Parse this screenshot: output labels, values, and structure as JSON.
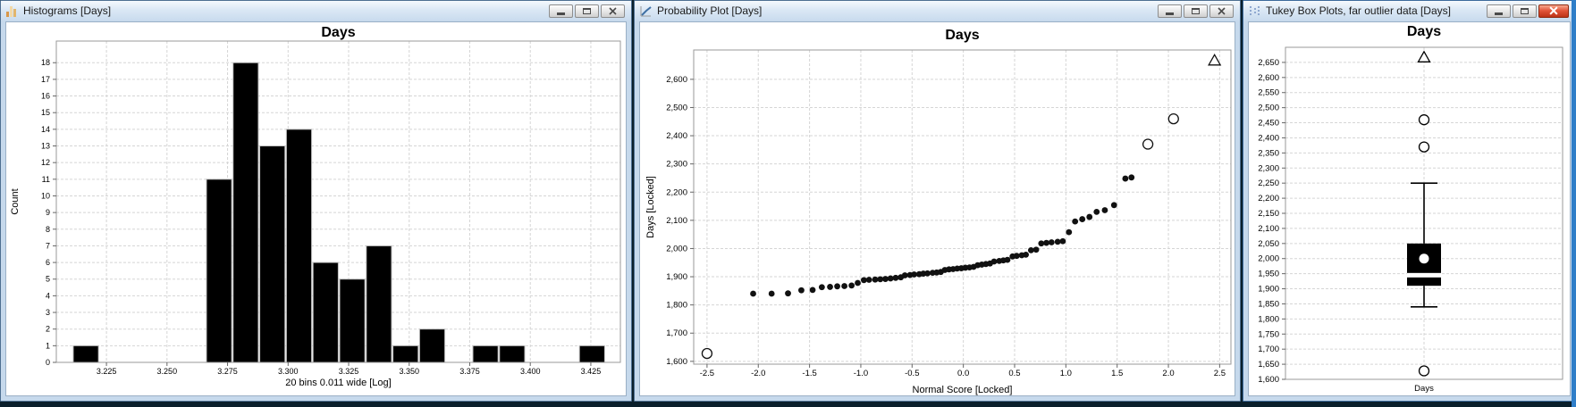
{
  "desktop": {
    "bg_color": "#0a1f2b",
    "right_edge_color": "#2f7ec8"
  },
  "windows": [
    {
      "title": "Histograms [Days]",
      "icon": "histogram-icon",
      "active": false
    },
    {
      "title": "Probability Plot [Days]",
      "icon": "line-plot-icon",
      "active": false
    },
    {
      "title": "Tukey Box Plots, far outlier data [Days]",
      "icon": "scatter-plot-icon",
      "active": true
    }
  ],
  "chart_data": [
    {
      "type": "bar",
      "title": "Days",
      "xlabel": "20 bins 0.011 wide [Log]",
      "ylabel": "Count",
      "bin_start": 3.211,
      "bin_width": 0.011,
      "counts": [
        1,
        0,
        0,
        0,
        0,
        11,
        18,
        13,
        14,
        6,
        5,
        7,
        1,
        2,
        0,
        1,
        1,
        0,
        0,
        1
      ],
      "x_ticks": [
        3.225,
        3.25,
        3.275,
        3.3,
        3.325,
        3.35,
        3.375,
        3.4,
        3.425
      ],
      "x_tick_decimals": 3,
      "y_ticks": [
        0,
        1,
        2,
        3,
        4,
        5,
        6,
        7,
        8,
        9,
        10,
        11,
        12,
        13,
        14,
        15,
        16,
        17,
        18
      ],
      "y_tick_comma": false,
      "xlim": [
        3.2043,
        3.4372
      ],
      "ylim": [
        0,
        19.3
      ],
      "bar_color": "#000000",
      "grid": true,
      "legend": "none"
    },
    {
      "type": "scatter",
      "title": "Days",
      "xlabel": "Normal Score [Locked]",
      "ylabel": "Days [Locked]",
      "x_ticks": [
        -2.5,
        -2,
        -1.5,
        -1,
        -0.5,
        0,
        0.5,
        1,
        1.5,
        2,
        2.5
      ],
      "x_tick_decimals": 1,
      "y_ticks": [
        1600,
        1700,
        1800,
        1900,
        2000,
        2100,
        2200,
        2300,
        2400,
        2500,
        2600
      ],
      "y_tick_comma": true,
      "xlim": [
        -2.63,
        2.61
      ],
      "ylim": [
        1590,
        2704
      ],
      "grid": true,
      "legend": "none",
      "series": [
        {
          "name": "data",
          "marker": "filled-dot",
          "color": "#111111",
          "points": [
            [
              -2.05,
              1840
            ],
            [
              -1.87,
              1840
            ],
            [
              -1.71,
              1841
            ],
            [
              -1.58,
              1852
            ],
            [
              -1.47,
              1853
            ],
            [
              -1.38,
              1863
            ],
            [
              -1.3,
              1864
            ],
            [
              -1.23,
              1866
            ],
            [
              -1.16,
              1867
            ],
            [
              -1.09,
              1869
            ],
            [
              -1.03,
              1878
            ],
            [
              -0.97,
              1888
            ],
            [
              -0.92,
              1889
            ],
            [
              -0.86,
              1890
            ],
            [
              -0.81,
              1891
            ],
            [
              -0.76,
              1892
            ],
            [
              -0.71,
              1894
            ],
            [
              -0.66,
              1896
            ],
            [
              -0.61,
              1898
            ],
            [
              -0.57,
              1905
            ],
            [
              -0.52,
              1906
            ],
            [
              -0.48,
              1908
            ],
            [
              -0.43,
              1909
            ],
            [
              -0.39,
              1911
            ],
            [
              -0.35,
              1912
            ],
            [
              -0.3,
              1914
            ],
            [
              -0.26,
              1915
            ],
            [
              -0.22,
              1917
            ],
            [
              -0.18,
              1924
            ],
            [
              -0.14,
              1926
            ],
            [
              -0.1,
              1927
            ],
            [
              -0.06,
              1929
            ],
            [
              -0.02,
              1930
            ],
            [
              0.02,
              1932
            ],
            [
              0.06,
              1933
            ],
            [
              0.1,
              1935
            ],
            [
              0.14,
              1941
            ],
            [
              0.18,
              1943
            ],
            [
              0.22,
              1945
            ],
            [
              0.26,
              1947
            ],
            [
              0.3,
              1954
            ],
            [
              0.35,
              1956
            ],
            [
              0.39,
              1958
            ],
            [
              0.43,
              1960
            ],
            [
              0.48,
              1972
            ],
            [
              0.52,
              1974
            ],
            [
              0.57,
              1976
            ],
            [
              0.61,
              1978
            ],
            [
              0.66,
              1994
            ],
            [
              0.71,
              1996
            ],
            [
              0.76,
              2018
            ],
            [
              0.81,
              2020
            ],
            [
              0.86,
              2022
            ],
            [
              0.92,
              2024
            ],
            [
              0.97,
              2026
            ],
            [
              1.03,
              2058
            ],
            [
              1.09,
              2096
            ],
            [
              1.16,
              2104
            ],
            [
              1.23,
              2112
            ],
            [
              1.3,
              2130
            ],
            [
              1.38,
              2136
            ],
            [
              1.47,
              2154
            ],
            [
              1.58,
              2248
            ],
            [
              1.64,
              2252
            ]
          ]
        },
        {
          "name": "outliers",
          "marker": "open-circle",
          "color": "#111111",
          "points": [
            [
              -2.5,
              1628
            ],
            [
              1.8,
              2370
            ],
            [
              2.05,
              2460
            ]
          ]
        },
        {
          "name": "far-outlier",
          "marker": "open-triangle",
          "color": "#111111",
          "points": [
            [
              2.45,
              2665
            ]
          ]
        }
      ]
    },
    {
      "type": "box",
      "title": "Days",
      "category": "Days",
      "y_ticks": [
        1600,
        1650,
        1700,
        1750,
        1800,
        1850,
        1900,
        1950,
        2000,
        2050,
        2100,
        2150,
        2200,
        2250,
        2300,
        2350,
        2400,
        2450,
        2500,
        2550,
        2600,
        2650
      ],
      "y_tick_comma": true,
      "ylim": [
        1600,
        2700
      ],
      "grid": true,
      "box": {
        "whisker_high": 2250,
        "q3": 2050,
        "mean": 2000,
        "median": 1945,
        "q1": 1910,
        "whisker_low": 1840,
        "outliers": [
          1628,
          2370,
          2460
        ],
        "far_outliers": [
          2665
        ],
        "box_color": "#000000",
        "mean_marker_color": "#ffffff",
        "median_line_color": "#ffffff"
      }
    }
  ]
}
